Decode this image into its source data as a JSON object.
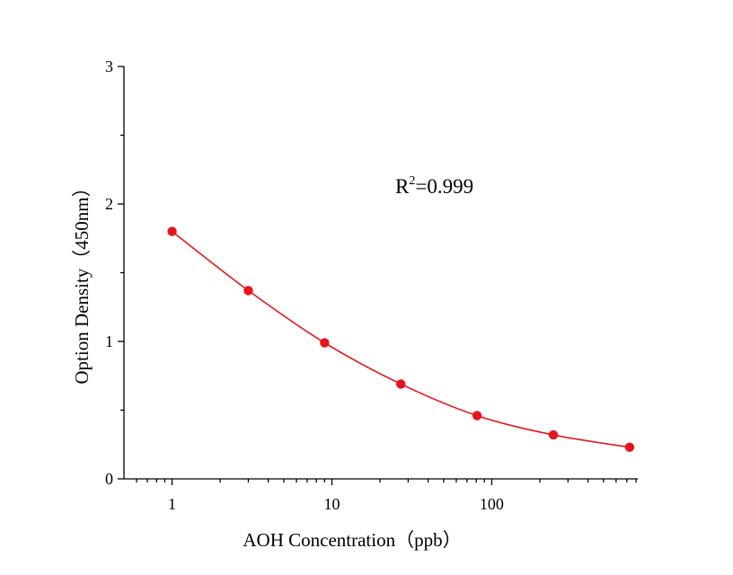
{
  "chart_data": {
    "type": "scatter",
    "xlabel": "AOH Concentration（ppb）",
    "ylabel": "Option Density（450nm）",
    "xscale": "log",
    "xlim": [
      0.5,
      820
    ],
    "ylim": [
      0,
      3
    ],
    "xticks": [
      1,
      10,
      100
    ],
    "xtick_labels": [
      "1",
      "10",
      "100"
    ],
    "yticks": [
      0,
      1,
      2,
      3
    ],
    "ytick_labels": [
      "0",
      "1",
      "2",
      "3"
    ],
    "grid": false,
    "legend": "none",
    "annotation": {
      "base": "R",
      "superscript": "2",
      "rest": "=0.999"
    },
    "series": [
      {
        "color": "#e8141b",
        "marker": "circle",
        "fit": "smooth-curve",
        "x": [
          1,
          3,
          9,
          27,
          81,
          243,
          729
        ],
        "y": [
          1.8,
          1.37,
          0.99,
          0.69,
          0.46,
          0.32,
          0.23
        ]
      }
    ]
  }
}
